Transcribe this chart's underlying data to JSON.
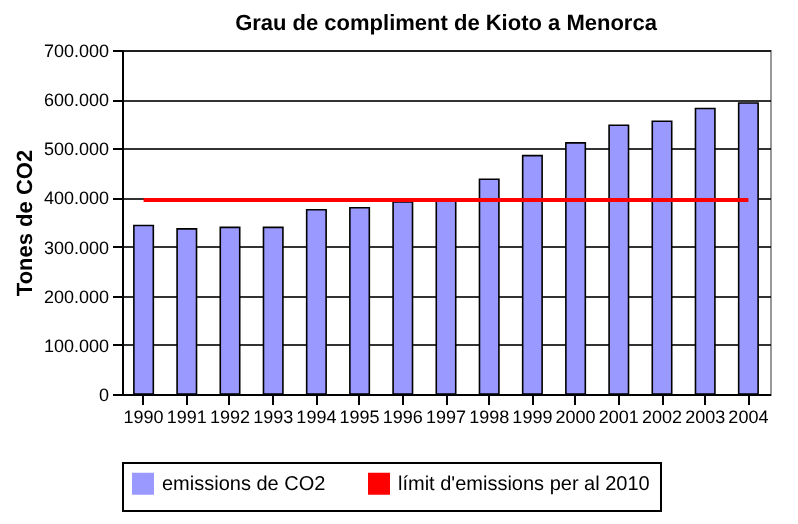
{
  "chart_data": {
    "type": "bar",
    "title": "Grau de compliment de Kioto a Menorca",
    "ylabel": "Tones de CO2",
    "categories": [
      "1990",
      "1991",
      "1992",
      "1993",
      "1994",
      "1995",
      "1996",
      "1997",
      "1998",
      "1999",
      "2000",
      "2001",
      "2002",
      "2003",
      "2004"
    ],
    "series": [
      {
        "name": "emissions de CO2",
        "color": "#9999ff",
        "values": [
          343000,
          336000,
          339000,
          339000,
          375000,
          379000,
          391000,
          395000,
          437000,
          485000,
          511000,
          547000,
          555000,
          581000,
          592000
        ]
      },
      {
        "name": "límit d'emissions per al 2010",
        "type": "line",
        "color": "#ff0000",
        "values": [
          395000,
          395000,
          395000,
          395000,
          395000,
          395000,
          395000,
          395000,
          395000,
          395000,
          395000,
          395000,
          395000,
          395000,
          395000
        ]
      }
    ],
    "ylim": [
      0,
      700000
    ],
    "yticks": [
      {
        "value": 0,
        "label": "0"
      },
      {
        "value": 100000,
        "label": "100.000"
      },
      {
        "value": 200000,
        "label": "200.000"
      },
      {
        "value": 300000,
        "label": "300.000"
      },
      {
        "value": 400000,
        "label": "400.000"
      },
      {
        "value": 500000,
        "label": "500.000"
      },
      {
        "value": 600000,
        "label": "600.000"
      },
      {
        "value": 700000,
        "label": "700.000"
      }
    ],
    "grid": "y",
    "legend": "bottom"
  }
}
